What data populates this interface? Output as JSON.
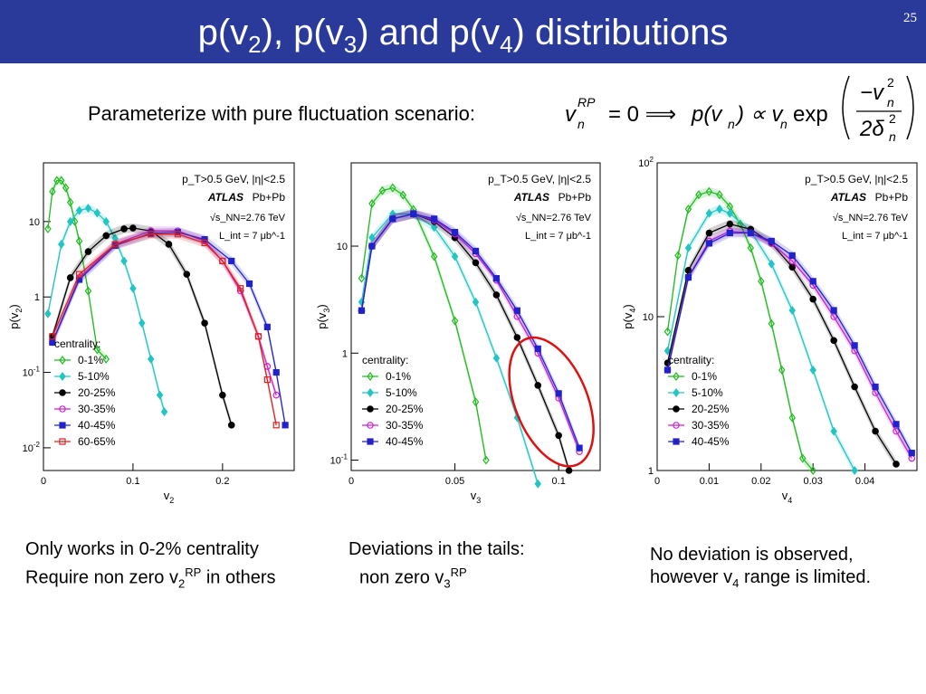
{
  "slide": {
    "title_parts": [
      "p(v",
      "2",
      "), p(v",
      "3",
      ") and p(v",
      "4",
      ") distributions"
    ],
    "number": "25",
    "intro": "Parameterize with pure fluctuation scenario:",
    "formula": {
      "lhs": "v",
      "lhs_sup": "RP",
      "lhs_sub": "n",
      "eq": "= 0 ⟹",
      "rhs": "p(v",
      "rhs_sub": "n",
      "prop": ") ∝ v",
      "exp": "exp",
      "num": "−v",
      "num_sup": "2",
      "den": "2δ",
      "den_sup": "2"
    },
    "captions": {
      "left_line1": "Only works in 0-2% centrality",
      "left_line2_a": "Require non zero v",
      "left_line2_sub": "2",
      "left_line2_sup": "RP",
      "left_line2_b": " in others",
      "middle_line1": "Deviations in the tails:",
      "middle_line2_a": "non zero v",
      "middle_line2_sub": "3",
      "middle_line2_sup": "RP",
      "right_line1": "No deviation is observed,",
      "right_line2_a": "however v",
      "right_line2_sub": "4",
      "right_line2_b": " range is limited."
    }
  },
  "chart_data": [
    {
      "type": "scatter",
      "xlabel": "v2",
      "ylabel": "p(v2)",
      "xlim": [
        0,
        0.28
      ],
      "ylim": [
        0.005,
        60
      ],
      "yscale": "log",
      "xticks": [
        "0",
        "0.1",
        "0.2"
      ],
      "yticks": [
        "10^-2",
        "10^-1",
        "1",
        "10"
      ],
      "annotations": [
        "p_T>0.5 GeV, |η|<2.5",
        "ATLAS",
        "Pb+Pb",
        "√s_NN=2.76 TeV",
        "L_int = 7 μb^-1"
      ],
      "legend_title": "centrality:",
      "legend_position": "bottom-left",
      "series": [
        {
          "name": "0-1%",
          "color": "#22bb22",
          "marker": "open-diamond",
          "x": [
            0.005,
            0.01,
            0.015,
            0.02,
            0.025,
            0.03,
            0.035,
            0.04,
            0.05,
            0.06,
            0.07
          ],
          "y": [
            8,
            25,
            35,
            35,
            28,
            18,
            10,
            5.5,
            1.2,
            0.2,
            0.15
          ]
        },
        {
          "name": "5-10%",
          "color": "#22c4c4",
          "marker": "diamond",
          "x": [
            0.005,
            0.02,
            0.03,
            0.04,
            0.05,
            0.06,
            0.07,
            0.08,
            0.09,
            0.1,
            0.11,
            0.12,
            0.13,
            0.135
          ],
          "y": [
            0.6,
            5,
            10,
            14,
            15,
            13,
            10,
            6,
            3,
            1.3,
            0.45,
            0.15,
            0.05,
            0.03
          ]
        },
        {
          "name": "20-25%",
          "color": "#000000",
          "marker": "circle",
          "x": [
            0.01,
            0.03,
            0.05,
            0.07,
            0.09,
            0.1,
            0.12,
            0.14,
            0.16,
            0.18,
            0.2,
            0.21
          ],
          "y": [
            0.3,
            1.8,
            4,
            6.5,
            8,
            8.2,
            7.5,
            5,
            2,
            0.45,
            0.05,
            0.02
          ]
        },
        {
          "name": "30-35%",
          "color": "#cc22cc",
          "marker": "open-circle",
          "x": [
            0.01,
            0.04,
            0.08,
            0.12,
            0.15,
            0.18,
            0.2,
            0.22,
            0.24,
            0.25,
            0.26
          ],
          "y": [
            0.25,
            1.8,
            5,
            7.5,
            7.5,
            5.5,
            3,
            1.2,
            0.3,
            0.12,
            0.05
          ]
        },
        {
          "name": "40-45%",
          "color": "#2222cc",
          "marker": "square",
          "x": [
            0.01,
            0.04,
            0.08,
            0.12,
            0.15,
            0.18,
            0.21,
            0.23,
            0.25,
            0.26,
            0.27
          ],
          "y": [
            0.25,
            1.7,
            4.8,
            7,
            7.2,
            5.8,
            3,
            1.5,
            0.4,
            0.1,
            0.02
          ]
        },
        {
          "name": "60-65%",
          "color": "#dd2222",
          "marker": "open-square",
          "x": [
            0.01,
            0.04,
            0.08,
            0.12,
            0.15,
            0.18,
            0.2,
            0.22,
            0.24,
            0.25,
            0.26
          ],
          "y": [
            0.3,
            2,
            5,
            6.8,
            6.8,
            5.2,
            3,
            1.3,
            0.3,
            0.08,
            0.02
          ]
        }
      ]
    },
    {
      "type": "scatter",
      "xlabel": "v3",
      "ylabel": "p(v3)",
      "xlim": [
        0,
        0.12
      ],
      "ylim": [
        0.08,
        60
      ],
      "yscale": "log",
      "xticks": [
        "0",
        "0.05",
        "0.1"
      ],
      "yticks": [
        "10^-1",
        "1",
        "10"
      ],
      "annotations": [
        "p_T>0.5 GeV, |η|<2.5",
        "ATLAS",
        "Pb+Pb",
        "√s_NN=2.76 TeV",
        "L_int = 7 μb^-1"
      ],
      "legend_title": "centrality:",
      "legend_position": "bottom-left",
      "series": [
        {
          "name": "0-1%",
          "color": "#22bb22",
          "marker": "open-diamond",
          "x": [
            0.005,
            0.01,
            0.015,
            0.02,
            0.025,
            0.03,
            0.04,
            0.05,
            0.06,
            0.065
          ],
          "y": [
            5,
            25,
            33,
            35,
            30,
            22,
            8,
            2,
            0.35,
            0.1
          ]
        },
        {
          "name": "5-10%",
          "color": "#22c4c4",
          "marker": "diamond",
          "x": [
            0.005,
            0.01,
            0.02,
            0.03,
            0.04,
            0.05,
            0.06,
            0.07,
            0.08,
            0.09
          ],
          "y": [
            3,
            12,
            20,
            20,
            15,
            8,
            3,
            0.9,
            0.25,
            0.06
          ]
        },
        {
          "name": "20-25%",
          "color": "#000000",
          "marker": "circle",
          "x": [
            0.005,
            0.01,
            0.02,
            0.03,
            0.04,
            0.05,
            0.06,
            0.07,
            0.08,
            0.09,
            0.1,
            0.105
          ],
          "y": [
            2.5,
            10,
            18,
            20,
            17,
            12,
            7,
            3.5,
            1.4,
            0.5,
            0.17,
            0.08
          ]
        },
        {
          "name": "30-35%",
          "color": "#cc22cc",
          "marker": "open-circle",
          "x": [
            0.005,
            0.01,
            0.02,
            0.03,
            0.04,
            0.05,
            0.06,
            0.07,
            0.08,
            0.09,
            0.1,
            0.11
          ],
          "y": [
            2.5,
            10,
            18,
            20,
            17.5,
            13,
            8.5,
            4.8,
            2.2,
            1,
            0.38,
            0.12
          ]
        },
        {
          "name": "40-45%",
          "color": "#2222cc",
          "marker": "square",
          "x": [
            0.005,
            0.01,
            0.02,
            0.03,
            0.04,
            0.05,
            0.06,
            0.07,
            0.08,
            0.09,
            0.1,
            0.11
          ],
          "y": [
            2.5,
            10,
            18,
            20,
            18,
            13.5,
            9,
            5,
            2.5,
            1.1,
            0.42,
            0.13
          ]
        }
      ]
    },
    {
      "type": "scatter",
      "xlabel": "v4",
      "ylabel": "p(v4)",
      "xlim": [
        0,
        0.05
      ],
      "ylim": [
        1,
        100
      ],
      "yscale": "log",
      "xticks": [
        "0",
        "0.01",
        "0.02",
        "0.03",
        "0.04"
      ],
      "yticks": [
        "1",
        "10",
        "10^2"
      ],
      "annotations": [
        "p_T>0.5 GeV, |η|<2.5",
        "ATLAS",
        "Pb+Pb",
        "√s_NN=2.76 TeV",
        "L_int = 7 μb^-1"
      ],
      "legend_title": "centrality:",
      "legend_position": "bottom-left",
      "series": [
        {
          "name": "0-1%",
          "color": "#22bb22",
          "marker": "open-diamond",
          "x": [
            0.002,
            0.004,
            0.006,
            0.008,
            0.01,
            0.012,
            0.014,
            0.016,
            0.018,
            0.02,
            0.022,
            0.024,
            0.026,
            0.028,
            0.03
          ],
          "y": [
            8,
            25,
            50,
            62,
            65,
            62,
            52,
            40,
            28,
            17,
            9,
            4.5,
            2.2,
            1.2,
            1
          ]
        },
        {
          "name": "5-10%",
          "color": "#22c4c4",
          "marker": "diamond",
          "x": [
            0.002,
            0.006,
            0.01,
            0.012,
            0.014,
            0.018,
            0.022,
            0.026,
            0.03,
            0.034,
            0.038
          ],
          "y": [
            6,
            28,
            47,
            50,
            47,
            36,
            22,
            11,
            4.5,
            1.8,
            1
          ]
        },
        {
          "name": "20-25%",
          "color": "#000000",
          "marker": "circle",
          "x": [
            0.002,
            0.006,
            0.01,
            0.014,
            0.018,
            0.022,
            0.026,
            0.03,
            0.034,
            0.038,
            0.042,
            0.046
          ],
          "y": [
            5,
            20,
            35,
            40,
            37,
            30,
            21,
            13,
            7,
            3.5,
            1.8,
            1.1
          ]
        },
        {
          "name": "30-35%",
          "color": "#cc22cc",
          "marker": "open-circle",
          "x": [
            0.002,
            0.006,
            0.01,
            0.014,
            0.018,
            0.022,
            0.026,
            0.03,
            0.034,
            0.038,
            0.042,
            0.046,
            0.049
          ],
          "y": [
            4.5,
            18,
            31,
            36,
            35,
            30,
            23,
            16,
            10,
            6,
            3.2,
            1.8,
            1.2
          ]
        },
        {
          "name": "40-45%",
          "color": "#2222cc",
          "marker": "square",
          "x": [
            0.002,
            0.006,
            0.01,
            0.014,
            0.018,
            0.022,
            0.026,
            0.03,
            0.034,
            0.038,
            0.042,
            0.046,
            0.049
          ],
          "y": [
            4.5,
            18,
            30,
            35,
            35,
            31,
            25,
            17,
            11,
            6.5,
            3.5,
            2,
            1.3
          ]
        }
      ]
    }
  ]
}
